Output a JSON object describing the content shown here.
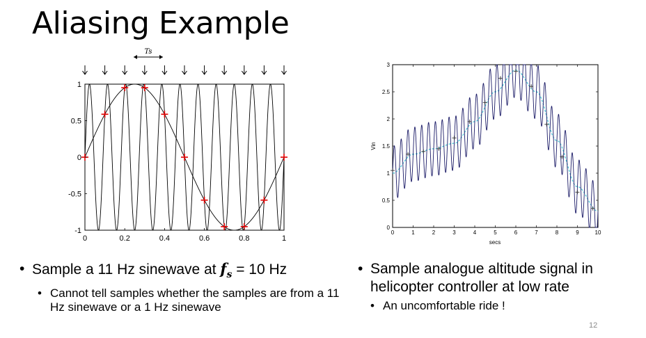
{
  "slide": {
    "title": "Aliasing Example",
    "page_number": "12"
  },
  "left": {
    "bullet_pre": "Sample a 11 Hz sinewave at ",
    "bullet_fs_symbol": "f",
    "bullet_fs_sub": "s",
    "bullet_post": " = 10 Hz",
    "sub_bullet": "Cannot tell samples whether the samples are from a 11 Hz sinewave or a 1 Hz sinewave"
  },
  "right": {
    "bullet": "Sample analogue altitude signal in helicopter controller at low rate",
    "sub_bullet": "An uncomfortable ride !"
  },
  "chart_data": [
    {
      "type": "line",
      "ts_label": "Ts",
      "xlim": [
        0,
        1
      ],
      "ylim": [
        -1,
        1
      ],
      "x_ticks": [
        "0",
        "0.2",
        "0.4",
        "0.6",
        "0.8",
        "1"
      ],
      "y_ticks": [
        "1",
        "0.5",
        "0",
        "-0.5",
        "-1"
      ],
      "series": [
        {
          "frequency_hz": 11
        },
        {
          "frequency_hz": 1
        }
      ],
      "samples": {
        "x": [
          0,
          0.1,
          0.2,
          0.3,
          0.4,
          0.5,
          0.6,
          0.7,
          0.8,
          0.9,
          1.0
        ],
        "y": [
          0,
          0.588,
          0.951,
          0.951,
          0.588,
          0,
          -0.588,
          -0.951,
          -0.951,
          -0.588,
          0
        ]
      },
      "sample_marker_color": "#e00000",
      "arrow_count": 11
    },
    {
      "type": "line",
      "xlabel": "secs",
      "ylabel": "Vin",
      "xlim": [
        0,
        10
      ],
      "ylim": [
        0,
        3
      ],
      "x_ticks": [
        "0",
        "1",
        "2",
        "3",
        "4",
        "5",
        "6",
        "7",
        "8",
        "9",
        "10"
      ],
      "y_ticks": [
        "3",
        "2.5",
        "2",
        "1.5",
        "1",
        "0.5",
        "0"
      ],
      "underlying": {
        "x": [
          0,
          1,
          2,
          3,
          4,
          5,
          6,
          7,
          8,
          9,
          10
        ],
        "y": [
          1.0,
          1.35,
          1.45,
          1.55,
          1.95,
          2.5,
          2.9,
          2.5,
          1.6,
          0.75,
          0.3
        ]
      },
      "oscillation": {
        "amplitude": 0.5,
        "cycles_per_sec": 3
      },
      "samples": {
        "x": [
          0,
          0.75,
          1.5,
          2.25,
          3,
          3.75,
          4.5,
          5.25,
          6,
          6.75,
          7.5,
          8.25,
          9,
          9.75
        ],
        "y": [
          1.05,
          1.35,
          1.4,
          1.45,
          1.65,
          1.95,
          2.3,
          2.75,
          2.88,
          2.6,
          1.9,
          1.3,
          0.65,
          0.35
        ]
      },
      "underlying_color": "#4fc9d8",
      "oscillation_color": "#1a1a66"
    }
  ]
}
